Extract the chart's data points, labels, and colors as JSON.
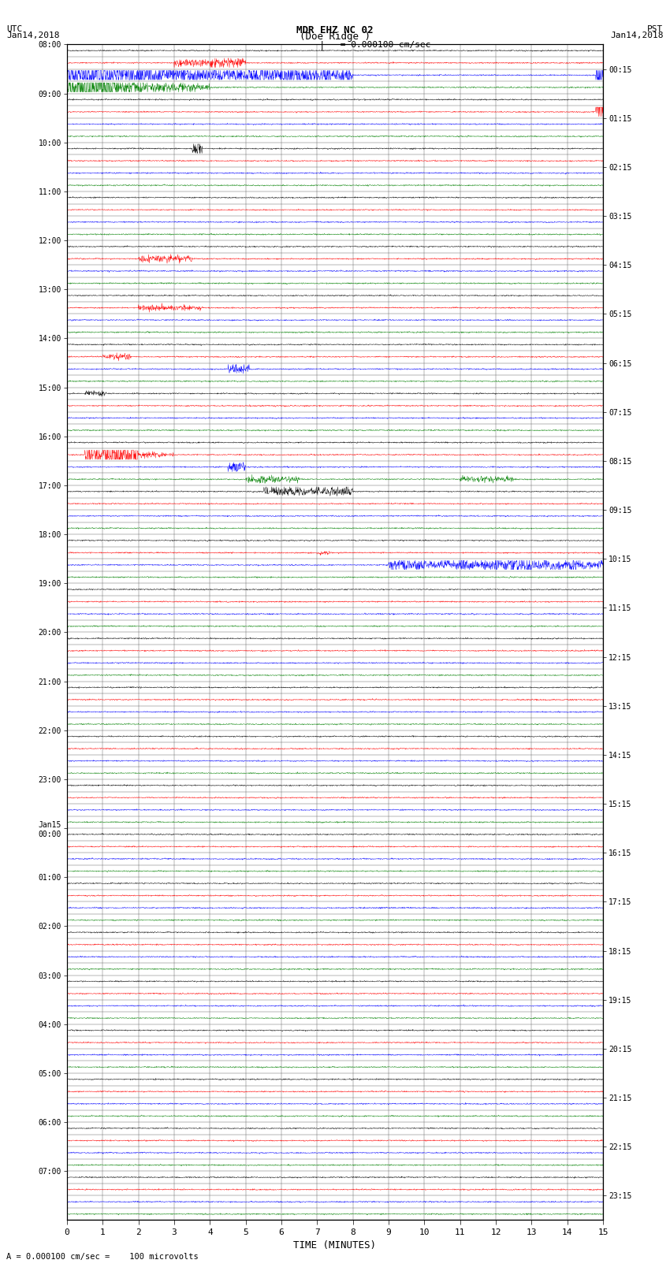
{
  "title_line1": "MDR EHZ NC 02",
  "title_line2": "(Doe Ridge )",
  "scale_text": "= 0.000100 cm/sec",
  "footer_text": "= 0.000100 cm/sec =    100 microvolts",
  "utc_label": "UTC",
  "utc_date": "Jan14,2018",
  "pst_label": "PST",
  "pst_date": "Jan14,2018",
  "xlabel": "TIME (MINUTES)",
  "bg_color": "#ffffff",
  "fig_width": 8.5,
  "fig_height": 16.13,
  "n_rows": 48,
  "colors_cycle": [
    "black",
    "red",
    "blue",
    "green"
  ],
  "utc_hour_labels": [
    "08:00",
    "09:00",
    "10:00",
    "11:00",
    "12:00",
    "13:00",
    "14:00",
    "15:00",
    "16:00",
    "17:00",
    "18:00",
    "19:00",
    "20:00",
    "21:00",
    "22:00",
    "23:00",
    "Jan15\n00:00",
    "01:00",
    "02:00",
    "03:00",
    "04:00",
    "05:00",
    "06:00",
    "07:00"
  ],
  "pst_hour_labels": [
    "00:15",
    "01:15",
    "02:15",
    "03:15",
    "04:15",
    "05:15",
    "06:15",
    "07:15",
    "08:15",
    "09:15",
    "10:15",
    "11:15",
    "12:15",
    "13:15",
    "14:15",
    "15:15",
    "16:15",
    "17:15",
    "18:15",
    "19:15",
    "20:15",
    "21:15",
    "22:15",
    "23:15"
  ]
}
